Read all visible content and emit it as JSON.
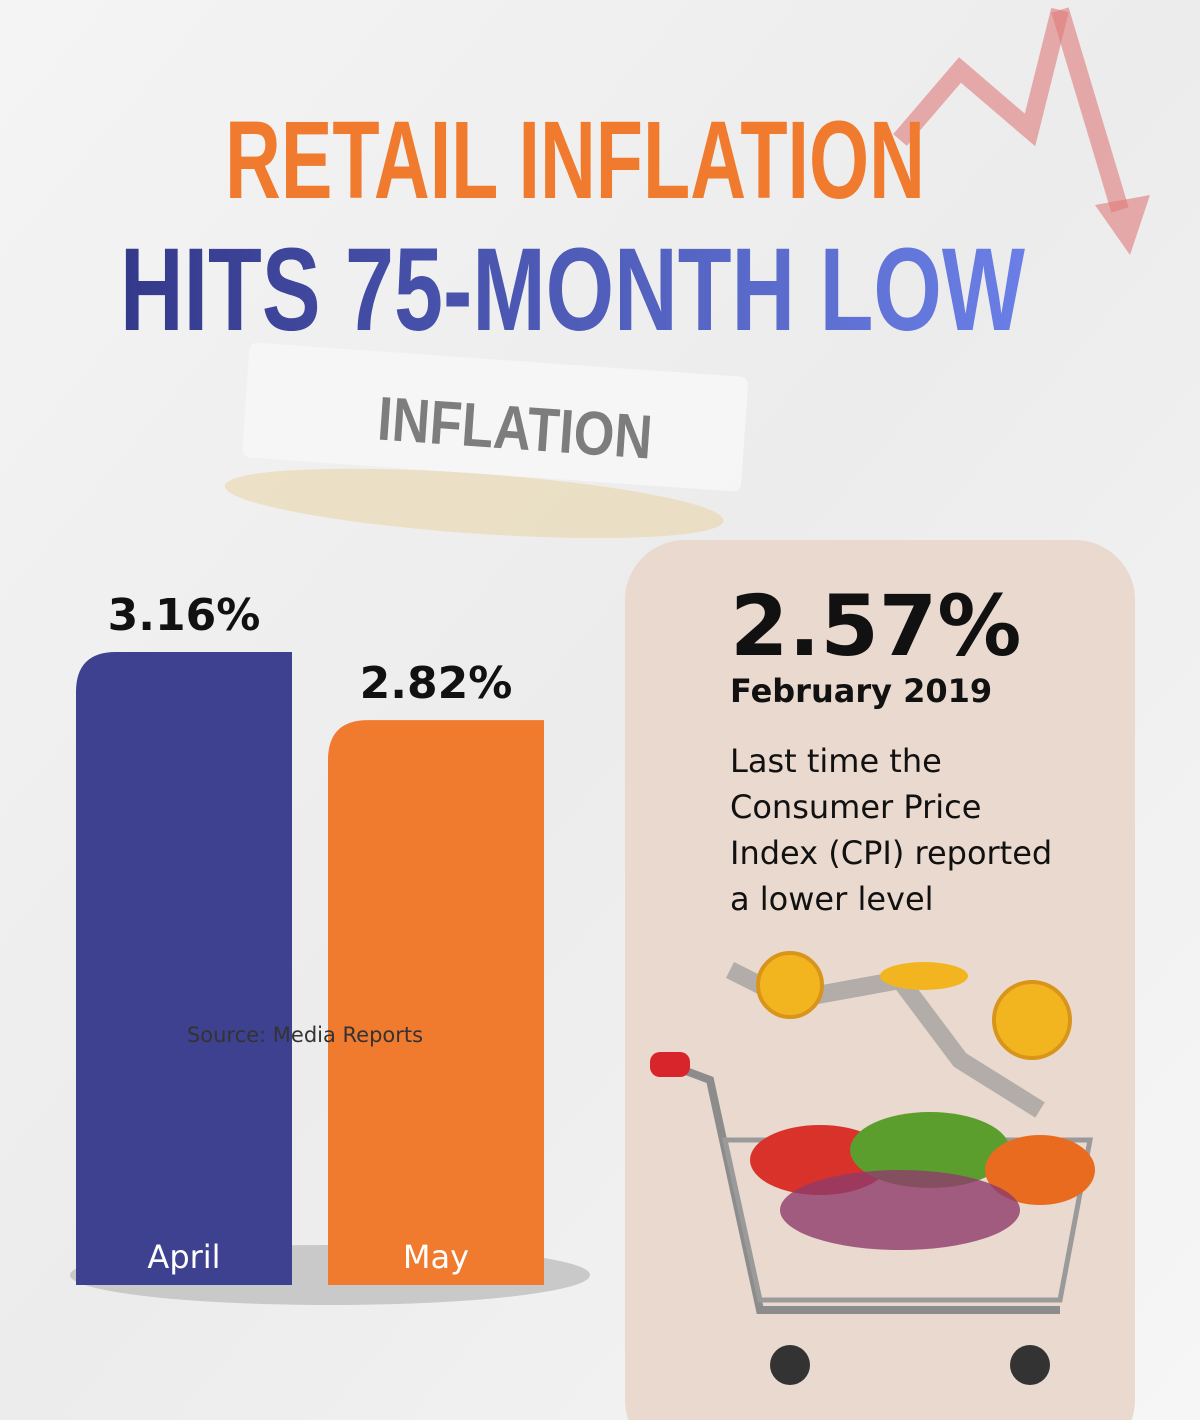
{
  "header": {
    "line1": "RETAIL INFLATION",
    "line2": "HITS 75-MONTH LOW"
  },
  "badge": "INFLATION",
  "chart_data": {
    "type": "bar",
    "categories": [
      "April",
      "May"
    ],
    "values": [
      3.16,
      2.82
    ],
    "value_labels": [
      "3.16%",
      "2.82%"
    ],
    "colors": [
      "#3d418f",
      "#f07a2e"
    ]
  },
  "callout": {
    "value": "2.57%",
    "date": "February 2019",
    "lines": [
      "Last time the",
      "Consumer Price",
      "Index (CPI) reported",
      "a lower level"
    ]
  },
  "source": "Source: Media Reports"
}
